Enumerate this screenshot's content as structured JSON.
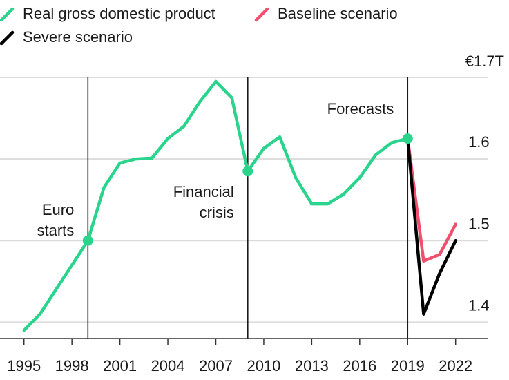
{
  "chart_data": {
    "type": "line",
    "title": "",
    "xlabel": "",
    "ylabel": "",
    "unit_prefix": "€",
    "unit_suffix": "T",
    "xlim": [
      1993.5,
      2024
    ],
    "ylim": [
      1.38,
      1.7
    ],
    "x_ticks": [
      {
        "value": 1995,
        "label": "1995"
      },
      {
        "value": 1998,
        "label": "1998"
      },
      {
        "value": 2001,
        "label": "2001"
      },
      {
        "value": 2004,
        "label": "2004"
      },
      {
        "value": 2007,
        "label": "2007"
      },
      {
        "value": 2010,
        "label": "2010"
      },
      {
        "value": 2013,
        "label": "2013"
      },
      {
        "value": 2016,
        "label": "2016"
      },
      {
        "value": 2019,
        "label": "2019"
      },
      {
        "value": 2022,
        "label": "2022"
      }
    ],
    "y_ticks": [
      {
        "value": 1.4,
        "label": "1.4"
      },
      {
        "value": 1.5,
        "label": "1.5"
      },
      {
        "value": 1.6,
        "label": "1.6"
      },
      {
        "value": 1.7,
        "label": "€1.7T"
      }
    ],
    "series": [
      {
        "name": "Real gross domestic product",
        "color": "#2bd48c",
        "x": [
          1995,
          1996,
          1997,
          1998,
          1999,
          2000,
          2001,
          2002,
          2003,
          2004,
          2005,
          2006,
          2007,
          2008,
          2009,
          2010,
          2011,
          2012,
          2013,
          2014,
          2015,
          2016,
          2017,
          2018,
          2019
        ],
        "values": [
          1.39,
          1.41,
          1.44,
          1.47,
          1.5,
          1.565,
          1.595,
          1.6,
          1.601,
          1.625,
          1.64,
          1.67,
          1.695,
          1.675,
          1.585,
          1.613,
          1.627,
          1.577,
          1.545,
          1.545,
          1.557,
          1.577,
          1.605,
          1.62,
          1.625
        ]
      },
      {
        "name": "Baseline scenario",
        "color": "#f0506e",
        "x": [
          2019,
          2020,
          2021,
          2022
        ],
        "values": [
          1.625,
          1.475,
          1.483,
          1.52
        ]
      },
      {
        "name": "Severe scenario",
        "color": "#000000",
        "x": [
          2019,
          2020,
          2021,
          2022
        ],
        "values": [
          1.625,
          1.41,
          1.46,
          1.5
        ]
      }
    ],
    "markers": [
      {
        "x": 1999,
        "y": 1.5
      },
      {
        "x": 2009,
        "y": 1.585
      },
      {
        "x": 2019,
        "y": 1.625
      }
    ],
    "vertical_lines": [
      {
        "x": 1999,
        "label_lines": [
          "Euro",
          "starts"
        ]
      },
      {
        "x": 2009,
        "label_lines": [
          "Financial",
          "crisis"
        ]
      },
      {
        "x": 2019,
        "label_lines": [
          "Forecasts"
        ]
      }
    ],
    "legend": [
      {
        "label": "Real gross domestic product",
        "color": "#2bd48c"
      },
      {
        "label": "Baseline scenario",
        "color": "#f0506e"
      },
      {
        "label": "Severe scenario",
        "color": "#000000"
      }
    ]
  }
}
